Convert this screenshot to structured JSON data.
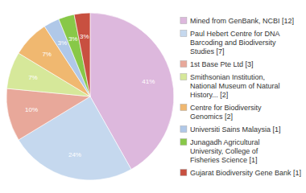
{
  "chart_data": {
    "type": "pie",
    "categories": [
      "Mined from GenBank, NCBI [12]",
      "Paul Hebert Centre for DNA\nBarcoding and Biodiversity\nStudies [7]",
      "1st Base Pte Ltd [3]",
      "Smithsonian Institution,\nNational Museum of Natural\nHistory... [2]",
      "Centre for Biodiversity\nGenomics [2]",
      "Universiti Sains Malaysia [1]",
      "Junagadh Agricultural\nUniversity, College of\nFisheries Science [1]",
      "Gujarat Biodiversity Gene Bank [1]"
    ],
    "values": [
      41,
      24,
      10,
      7,
      7,
      3,
      3,
      3
    ],
    "value_labels": [
      "41%",
      "24%",
      "10%",
      "7%",
      "7%",
      "3%",
      "3%",
      "3%"
    ],
    "data_labels": true,
    "colors": [
      "#ddb8dd",
      "#c5d8ee",
      "#e8a89a",
      "#d6e89a",
      "#f0b870",
      "#b0c8e8",
      "#88c848",
      "#c85040"
    ],
    "legend": "right"
  }
}
